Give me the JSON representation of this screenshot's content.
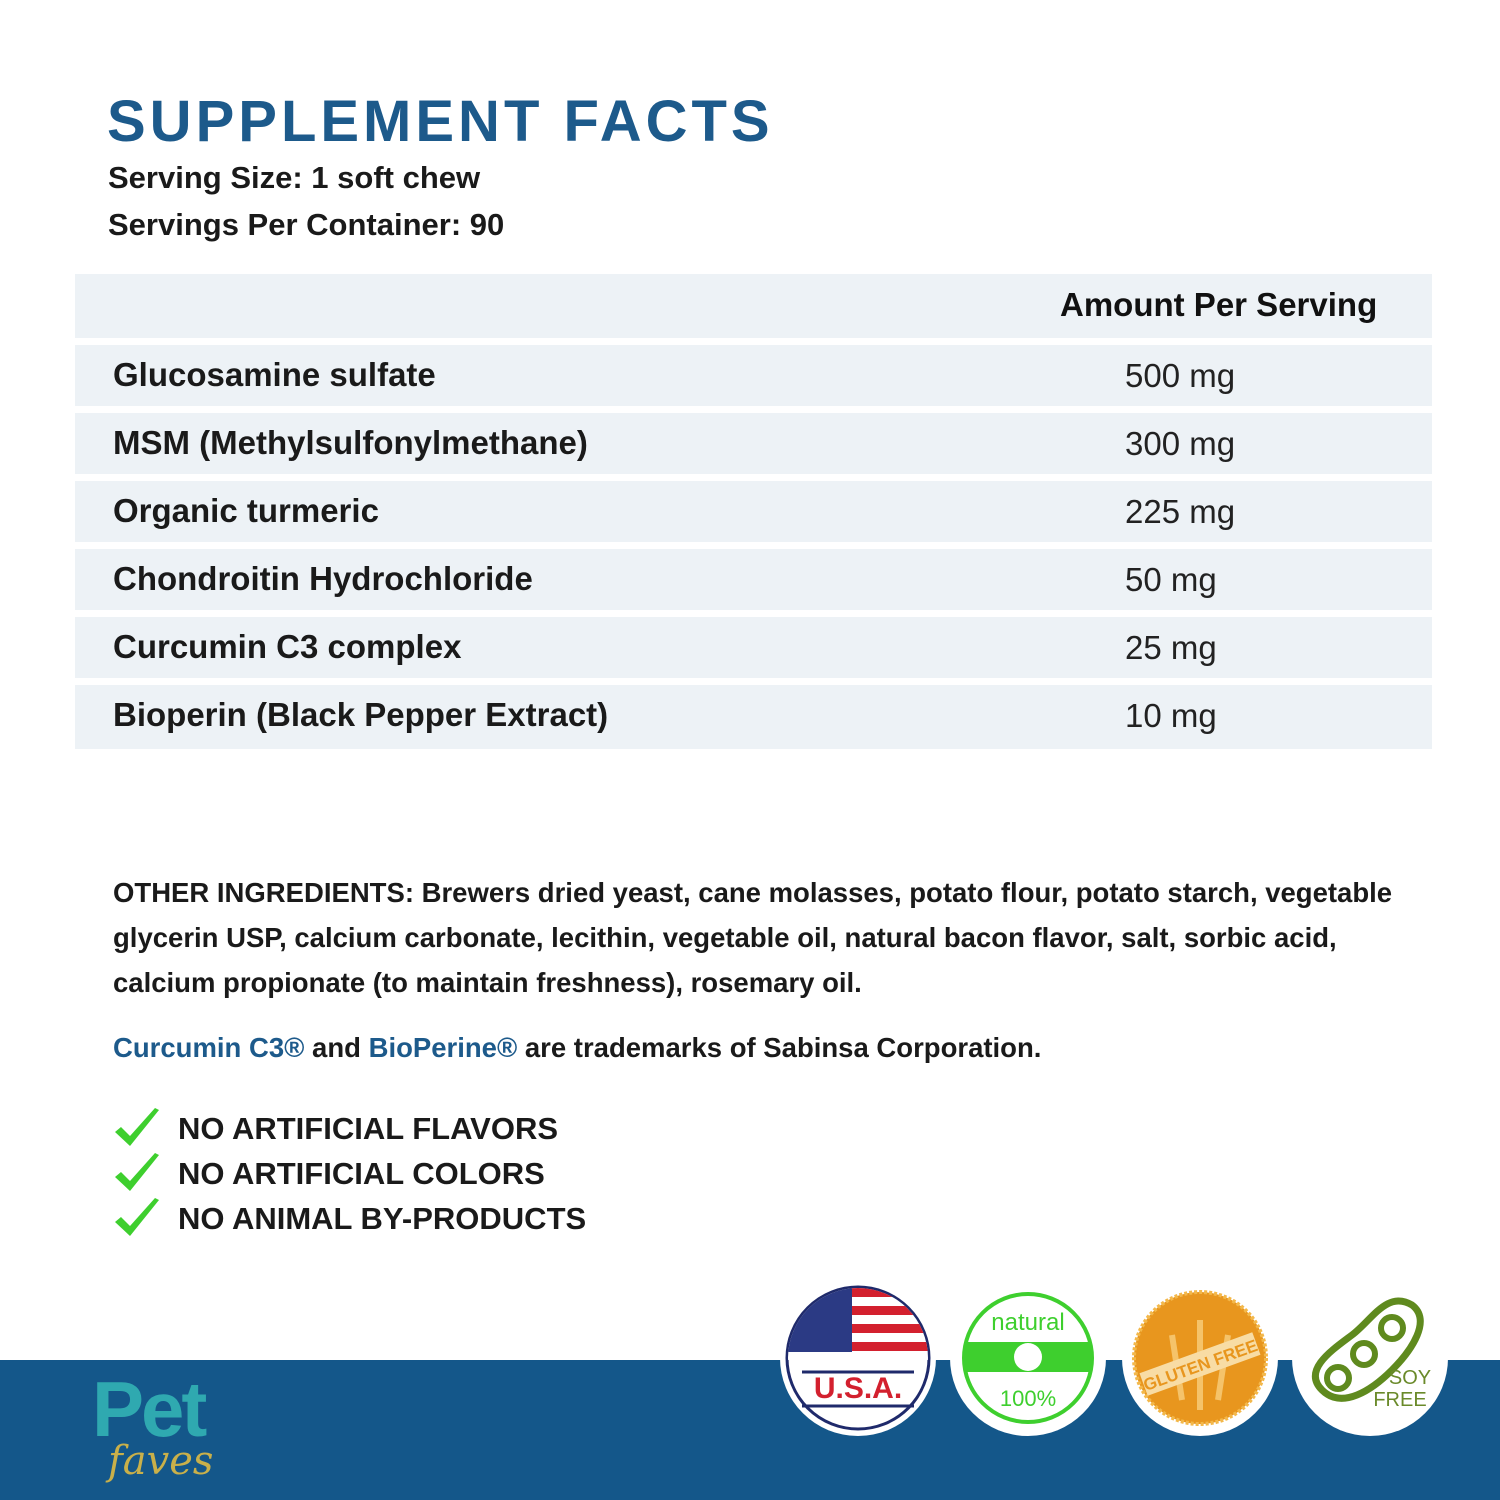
{
  "title": "SUPPLEMENT FACTS",
  "serving_size": "Serving Size: 1 soft chew",
  "servings_per_container": "Servings Per Container: 90",
  "table": {
    "header": "Amount Per Serving",
    "rows": [
      {
        "name": "Glucosamine sulfate",
        "amount": "500 mg"
      },
      {
        "name": "MSM (Methylsulfonylmethane)",
        "amount": "300 mg"
      },
      {
        "name": "Organic turmeric",
        "amount": "225 mg"
      },
      {
        "name": "Chondroitin Hydrochloride",
        "amount": "50 mg"
      },
      {
        "name": "Curcumin C3 complex",
        "amount": "25 mg"
      },
      {
        "name": "Bioperin (Black Pepper Extract)",
        "amount": "10 mg"
      }
    ]
  },
  "other_ingredients": "OTHER INGREDIENTS: Brewers dried yeast, cane molasses, potato flour, potato starch, vegetable glycerin USP, calcium carbonate, lecithin, vegetable oil, natural bacon flavor, salt, sorbic acid, calcium propionate (to maintain freshness), rosemary oil.",
  "trademark": {
    "brand1": "Curcumin C3®",
    "and": " and ",
    "brand2": "BioPerine®",
    "rest": " are trademarks of Sabinsa Corporation."
  },
  "claims": [
    "NO ARTIFICIAL FLAVORS",
    "NO ARTIFICIAL COLORS",
    "NO ANIMAL BY-PRODUCTS"
  ],
  "logo": {
    "line1": "Pet",
    "line2": "faves"
  },
  "badges": {
    "usa": "U.S.A.",
    "natural_top": "natural",
    "natural_bottom": "100%",
    "gluten": "GLUTEN FREE",
    "soy1": "SOY",
    "soy2": "FREE"
  },
  "colors": {
    "title": "#1d5a8b",
    "band": "#14578a",
    "row_bg": "#edf2f6",
    "check": "#3ecf2e"
  }
}
